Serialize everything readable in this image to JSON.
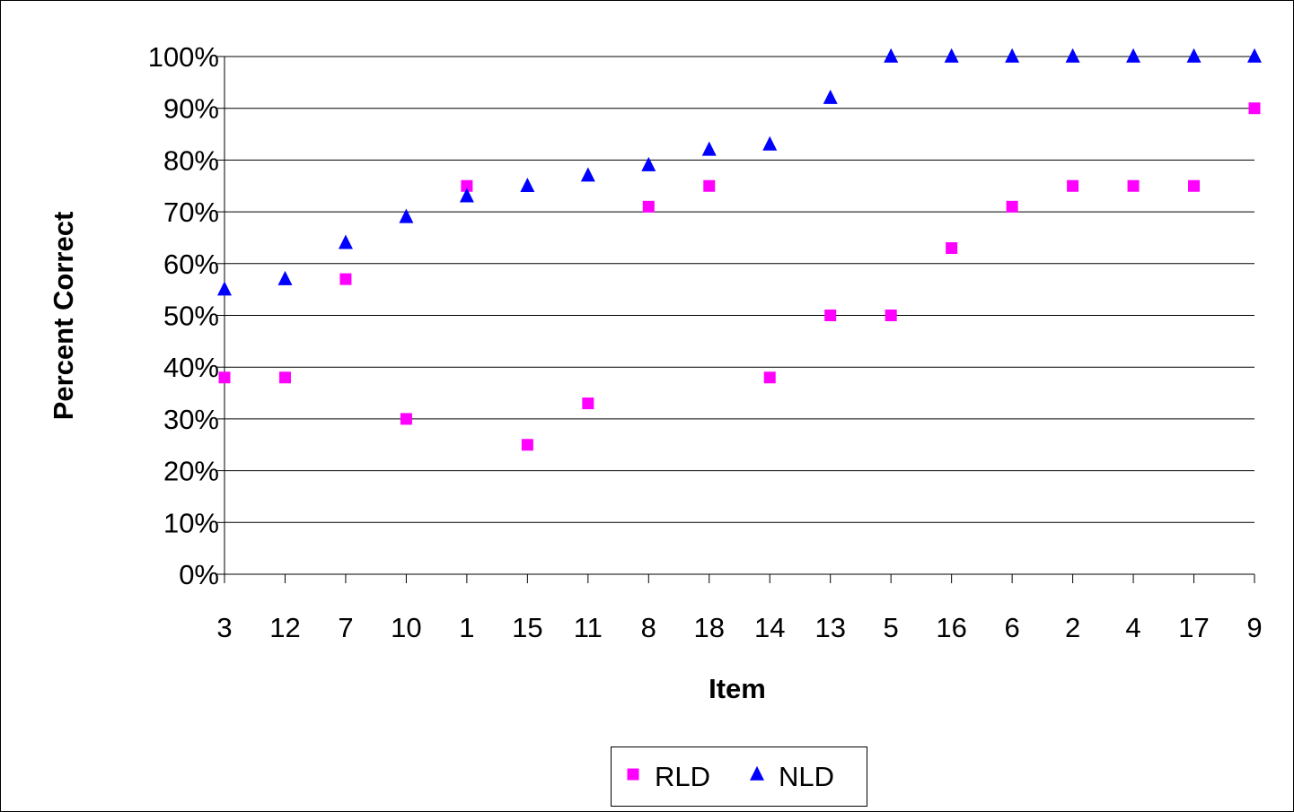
{
  "chart_data": {
    "type": "scatter",
    "title": "",
    "xlabel": "Item",
    "ylabel": "Percent Correct",
    "categories": [
      "3",
      "12",
      "7",
      "10",
      "1",
      "15",
      "11",
      "8",
      "18",
      "14",
      "13",
      "5",
      "16",
      "6",
      "2",
      "4",
      "17",
      "9"
    ],
    "ylim": [
      0,
      100
    ],
    "y_ticks": [
      "0%",
      "10%",
      "20%",
      "30%",
      "40%",
      "50%",
      "60%",
      "70%",
      "80%",
      "90%",
      "100%"
    ],
    "grid": true,
    "legend_position": "bottom",
    "series": [
      {
        "name": "RLD",
        "marker": "square",
        "color": "#ff00ff",
        "values": [
          38,
          38,
          57,
          30,
          75,
          25,
          33,
          71,
          75,
          38,
          50,
          50,
          63,
          71,
          75,
          75,
          75,
          90
        ]
      },
      {
        "name": "NLD",
        "marker": "triangle",
        "color": "#0000ff",
        "values": [
          55,
          57,
          64,
          69,
          73,
          75,
          77,
          79,
          82,
          83,
          92,
          100,
          100,
          100,
          100,
          100,
          100,
          100
        ]
      }
    ]
  }
}
